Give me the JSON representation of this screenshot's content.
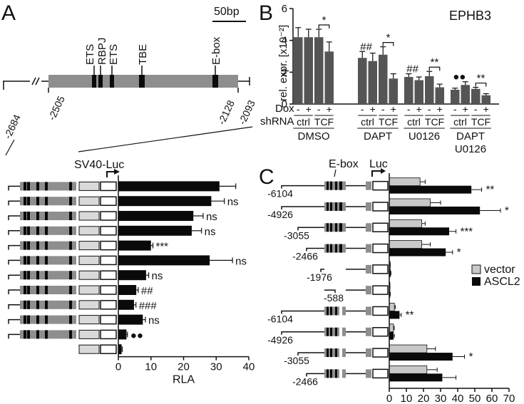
{
  "panels": {
    "A": "A",
    "B": "B",
    "C": "C"
  },
  "gene_map": {
    "scale_label": "50bp",
    "sites": [
      "ETS",
      "RBPJ",
      "ETS",
      "TBE",
      "E-box"
    ],
    "positions": [
      "-2684",
      "-2505",
      "-2128",
      "-2093"
    ]
  },
  "colors": {
    "black_bar": "#0a0a0a",
    "grey_bar": "#555555",
    "vector": "#c8c8c8",
    "element_grey": "#8e8e8e"
  },
  "chart_data": [
    {
      "type": "bar",
      "panel": "A",
      "construct_label": "SV40-Luc",
      "xlabel": "RLA",
      "xlim": [
        0,
        40
      ],
      "xticks": [
        "0",
        "10",
        "20",
        "30",
        "40"
      ],
      "values": [
        31,
        28.5,
        23,
        22.5,
        10,
        28,
        8.5,
        5.5,
        4.8,
        7.5,
        2.5,
        1
      ],
      "errors": [
        5,
        4,
        3,
        3,
        0.6,
        7,
        0.8,
        0.6,
        0.6,
        0.8,
        0.3,
        0.2
      ],
      "significance": [
        "",
        "ns",
        "ns",
        "ns",
        "***",
        "ns",
        "ns",
        "##",
        "###",
        "ns",
        "●●",
        ""
      ]
    },
    {
      "type": "bar",
      "panel": "B",
      "title": "EPHB3",
      "ylabel": "rel. expr. [x10⁻²]",
      "ylim": [
        0,
        6
      ],
      "yticks": [
        "0",
        "2",
        "4",
        "6"
      ],
      "dox_label": "Dox",
      "shrna_label": "shRNA",
      "dox": [
        "-",
        "+",
        "-",
        "+"
      ],
      "shrna": [
        "ctrl",
        "TCF"
      ],
      "groups": [
        "DMSO",
        "DAPT",
        "U0126",
        "DAPT\nU0126"
      ],
      "values": [
        [
          4.2,
          4.2,
          4.2,
          3.3
        ],
        [
          2.9,
          2.7,
          3.1,
          1.6
        ],
        [
          1.7,
          1.5,
          1.75,
          1.05
        ],
        [
          0.9,
          1.2,
          0.95,
          0.55
        ]
      ],
      "errors": [
        [
          0.6,
          0.5,
          0.5,
          0.6
        ],
        [
          0.4,
          0.5,
          0.5,
          0.3
        ],
        [
          0.2,
          0.2,
          0.3,
          0.2
        ],
        [
          0.1,
          0.2,
          0.1,
          0.1
        ]
      ],
      "group_marks": [
        "",
        "##",
        "##",
        "●●"
      ],
      "significance": [
        "*",
        "*",
        "**",
        "**"
      ]
    },
    {
      "type": "bar",
      "panel": "C",
      "ebox_label": "E-box",
      "luc_label": "Luc",
      "xlabel": "RLA",
      "xlim": [
        0,
        70
      ],
      "xticks": [
        "0",
        "10",
        "20",
        "30",
        "40",
        "50",
        "60",
        "70"
      ],
      "legend": [
        {
          "name": "vector",
          "color": "#c8c8c8"
        },
        {
          "name": "ASCL2",
          "color": "#0a0a0a"
        }
      ],
      "row_labels": [
        "-6104",
        "-4926",
        "-3055",
        "-2466",
        "-1976",
        "-588",
        "-6104",
        "-4926",
        "-3055",
        "-2466"
      ],
      "series": [
        {
          "name": "vector",
          "values": [
            18,
            24,
            19,
            19,
            0.5,
            0.3,
            3,
            2.5,
            22,
            22
          ],
          "errors": [
            3,
            6,
            2,
            5,
            0.1,
            0.1,
            0.5,
            0.4,
            5,
            6
          ]
        },
        {
          "name": "ASCL2",
          "values": [
            48,
            53,
            35,
            33,
            0.8,
            0.5,
            6,
            2.5,
            37,
            31
          ],
          "errors": [
            6,
            12,
            4,
            4,
            0.2,
            0.1,
            1,
            0.5,
            7,
            8
          ]
        }
      ],
      "significance": [
        "**",
        "*",
        "***",
        "*",
        "",
        "",
        "**",
        "",
        "*",
        ""
      ]
    }
  ]
}
